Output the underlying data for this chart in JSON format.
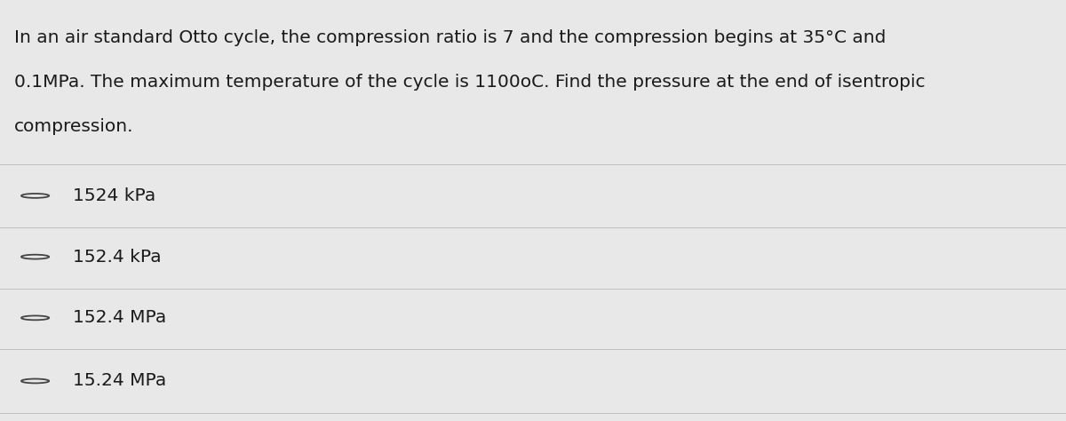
{
  "question_text_lines": [
    "In an air standard Otto cycle, the compression ratio is 7 and the compression begins at 35°C and",
    "0.1MPa. The maximum temperature of the cycle is 1100oC. Find the pressure at the end of isentropic",
    "compression."
  ],
  "options": [
    "1524 kPa",
    "152.4 kPa",
    "152.4 MPa",
    "15.24 MPa"
  ],
  "background_color": "#e8e8e8",
  "text_color": "#1a1a1a",
  "line_color": "#c0c0c0",
  "circle_color": "#444444",
  "question_fontsize": 14.5,
  "option_fontsize": 14.5,
  "figwidth": 12.0,
  "figheight": 4.74
}
